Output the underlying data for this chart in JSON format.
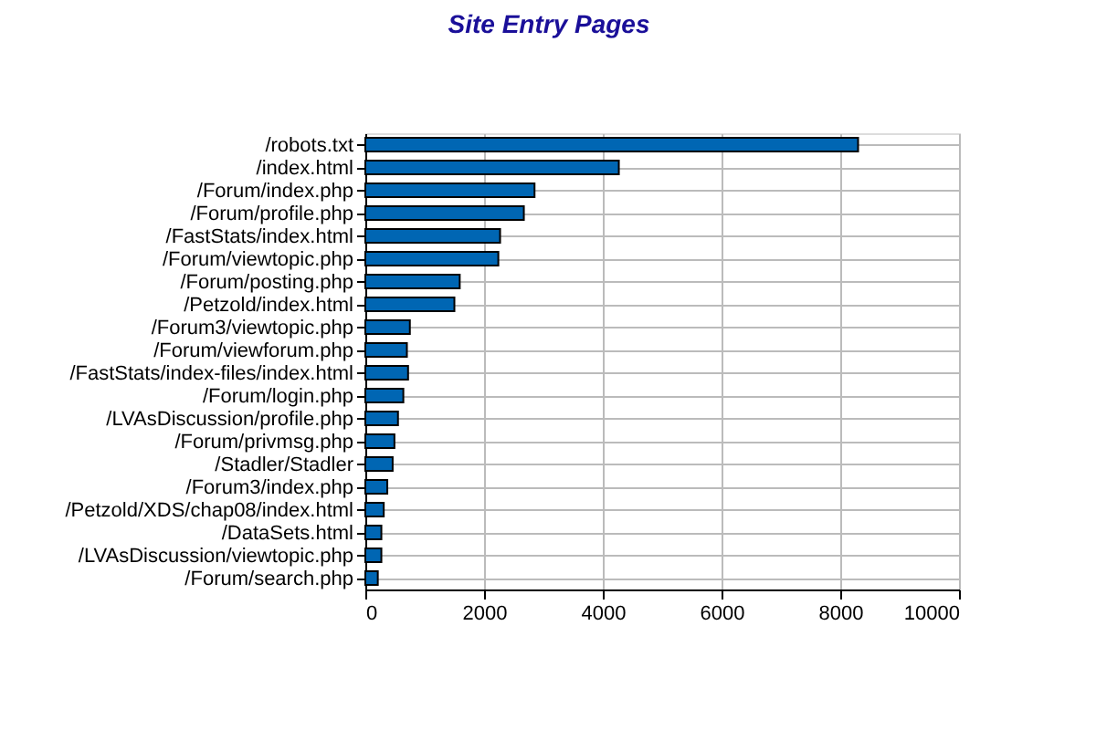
{
  "chart_data": {
    "type": "bar",
    "orientation": "horizontal",
    "title": "Site Entry Pages",
    "categories": [
      "/robots.txt",
      "/index.html",
      "/Forum/index.php",
      "/Forum/profile.php",
      "/FastStats/index.html",
      "/Forum/viewtopic.php",
      "/Forum/posting.php",
      "/Petzold/index.html",
      "/Forum3/viewtopic.php",
      "/Forum/viewforum.php",
      "/FastStats/index-files/index.html",
      "/Forum/login.php",
      "/LVAsDiscussion/profile.php",
      "/Forum/privmsg.php",
      "/Stadler/Stadler",
      "/Forum3/index.php",
      "/Petzold/XDS/chap08/index.html",
      "/DataSets.html",
      "/LVAsDiscussion/viewtopic.php",
      "/Forum/search.php"
    ],
    "values": [
      8300,
      4270,
      2850,
      2670,
      2270,
      2240,
      1590,
      1500,
      750,
      700,
      720,
      640,
      550,
      490,
      460,
      370,
      310,
      270,
      270,
      210
    ],
    "color": "#0066b3",
    "xlim": [
      0,
      10000
    ],
    "xticks": [
      0,
      2000,
      4000,
      6000,
      8000,
      10000
    ],
    "grid": true
  }
}
